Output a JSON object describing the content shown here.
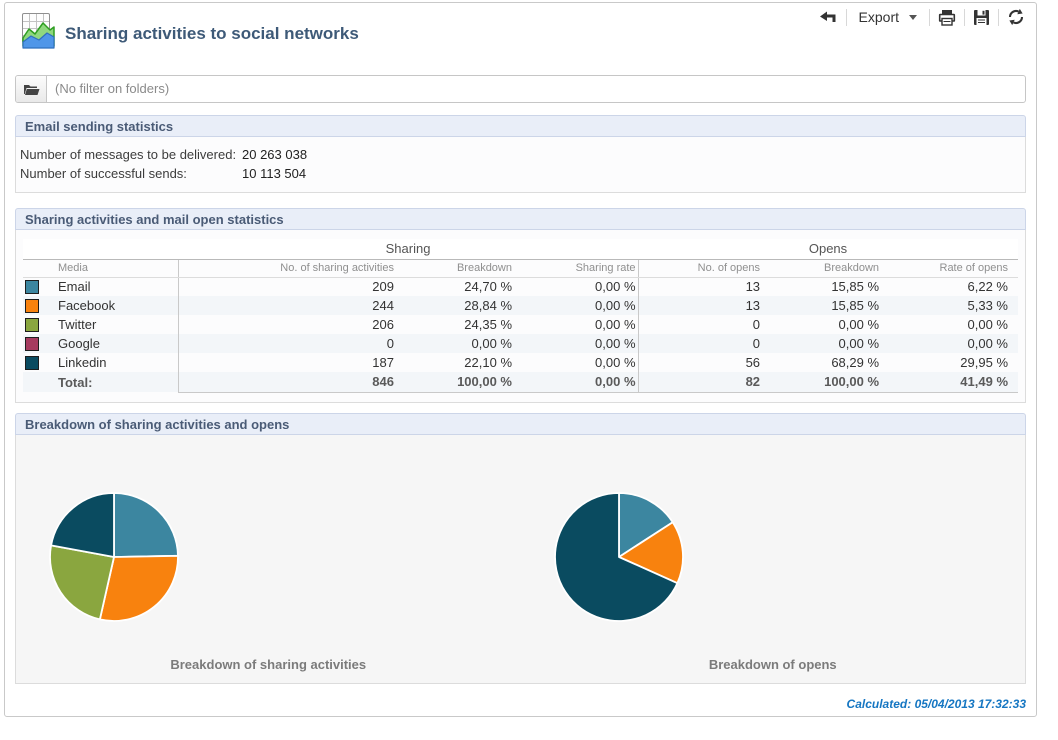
{
  "header": {
    "title": "Sharing activities to social networks"
  },
  "toolbar": {
    "export_label": "Export"
  },
  "filter": {
    "label": "(No filter on folders)"
  },
  "email_stats": {
    "title": "Email sending statistics",
    "rows": [
      {
        "label": "Number of messages to be delivered:",
        "value": "20 263 038"
      },
      {
        "label": "Number of successful sends:",
        "value": "10 113 504"
      }
    ]
  },
  "sharing_table": {
    "title": "Sharing activities and mail open statistics",
    "group_sharing": "Sharing",
    "group_opens": "Opens",
    "columns": [
      "Media",
      "No. of sharing activities",
      "Breakdown",
      "Sharing rate",
      "No. of opens",
      "Breakdown",
      "Rate of opens"
    ],
    "rows": [
      {
        "media": "Email",
        "color": "#3c86a0",
        "sharing": "209",
        "sharing_breakdown": "24,70 %",
        "sharing_rate": "0,00 %",
        "opens": "13",
        "opens_breakdown": "15,85 %",
        "rate_of_opens": "6,22 %"
      },
      {
        "media": "Facebook",
        "color": "#f8820e",
        "sharing": "244",
        "sharing_breakdown": "28,84 %",
        "sharing_rate": "0,00 %",
        "opens": "13",
        "opens_breakdown": "15,85 %",
        "rate_of_opens": "5,33 %"
      },
      {
        "media": "Twitter",
        "color": "#8aa63f",
        "sharing": "206",
        "sharing_breakdown": "24,35 %",
        "sharing_rate": "0,00 %",
        "opens": "0",
        "opens_breakdown": "0,00 %",
        "rate_of_opens": "0,00 %"
      },
      {
        "media": "Google",
        "color": "#a63a5f",
        "sharing": "0",
        "sharing_breakdown": "0,00 %",
        "sharing_rate": "0,00 %",
        "opens": "0",
        "opens_breakdown": "0,00 %",
        "rate_of_opens": "0,00 %"
      },
      {
        "media": "Linkedin",
        "color": "#0a4b60",
        "sharing": "187",
        "sharing_breakdown": "22,10 %",
        "sharing_rate": "0,00 %",
        "opens": "56",
        "opens_breakdown": "68,29 %",
        "rate_of_opens": "29,95 %"
      }
    ],
    "total": {
      "label": "Total:",
      "sharing": "846",
      "sharing_breakdown": "100,00 %",
      "sharing_rate": "0,00 %",
      "opens": "82",
      "opens_breakdown": "100,00 %",
      "rate_of_opens": "41,49 %"
    }
  },
  "charts_section": {
    "title": "Breakdown of sharing activities and opens"
  },
  "chart_data": [
    {
      "type": "pie",
      "title": "Breakdown of sharing activities",
      "categories": [
        "Email",
        "Facebook",
        "Twitter",
        "Google",
        "Linkedin"
      ],
      "values": [
        24.7,
        28.84,
        24.35,
        0,
        22.1
      ],
      "colors": [
        "#3c86a0",
        "#f8820e",
        "#8aa63f",
        "#a63a5f",
        "#0a4b60"
      ],
      "unit": "%",
      "legend": "none"
    },
    {
      "type": "pie",
      "title": "Breakdown of opens",
      "categories": [
        "Email",
        "Facebook",
        "Twitter",
        "Google",
        "Linkedin"
      ],
      "values": [
        15.85,
        15.85,
        0,
        0,
        68.29
      ],
      "colors": [
        "#3c86a0",
        "#f8820e",
        "#8aa63f",
        "#a63a5f",
        "#0a4b60"
      ],
      "unit": "%",
      "legend": "none"
    }
  ],
  "footer": {
    "calculated": "Calculated: 05/04/2013 17:32:33"
  }
}
